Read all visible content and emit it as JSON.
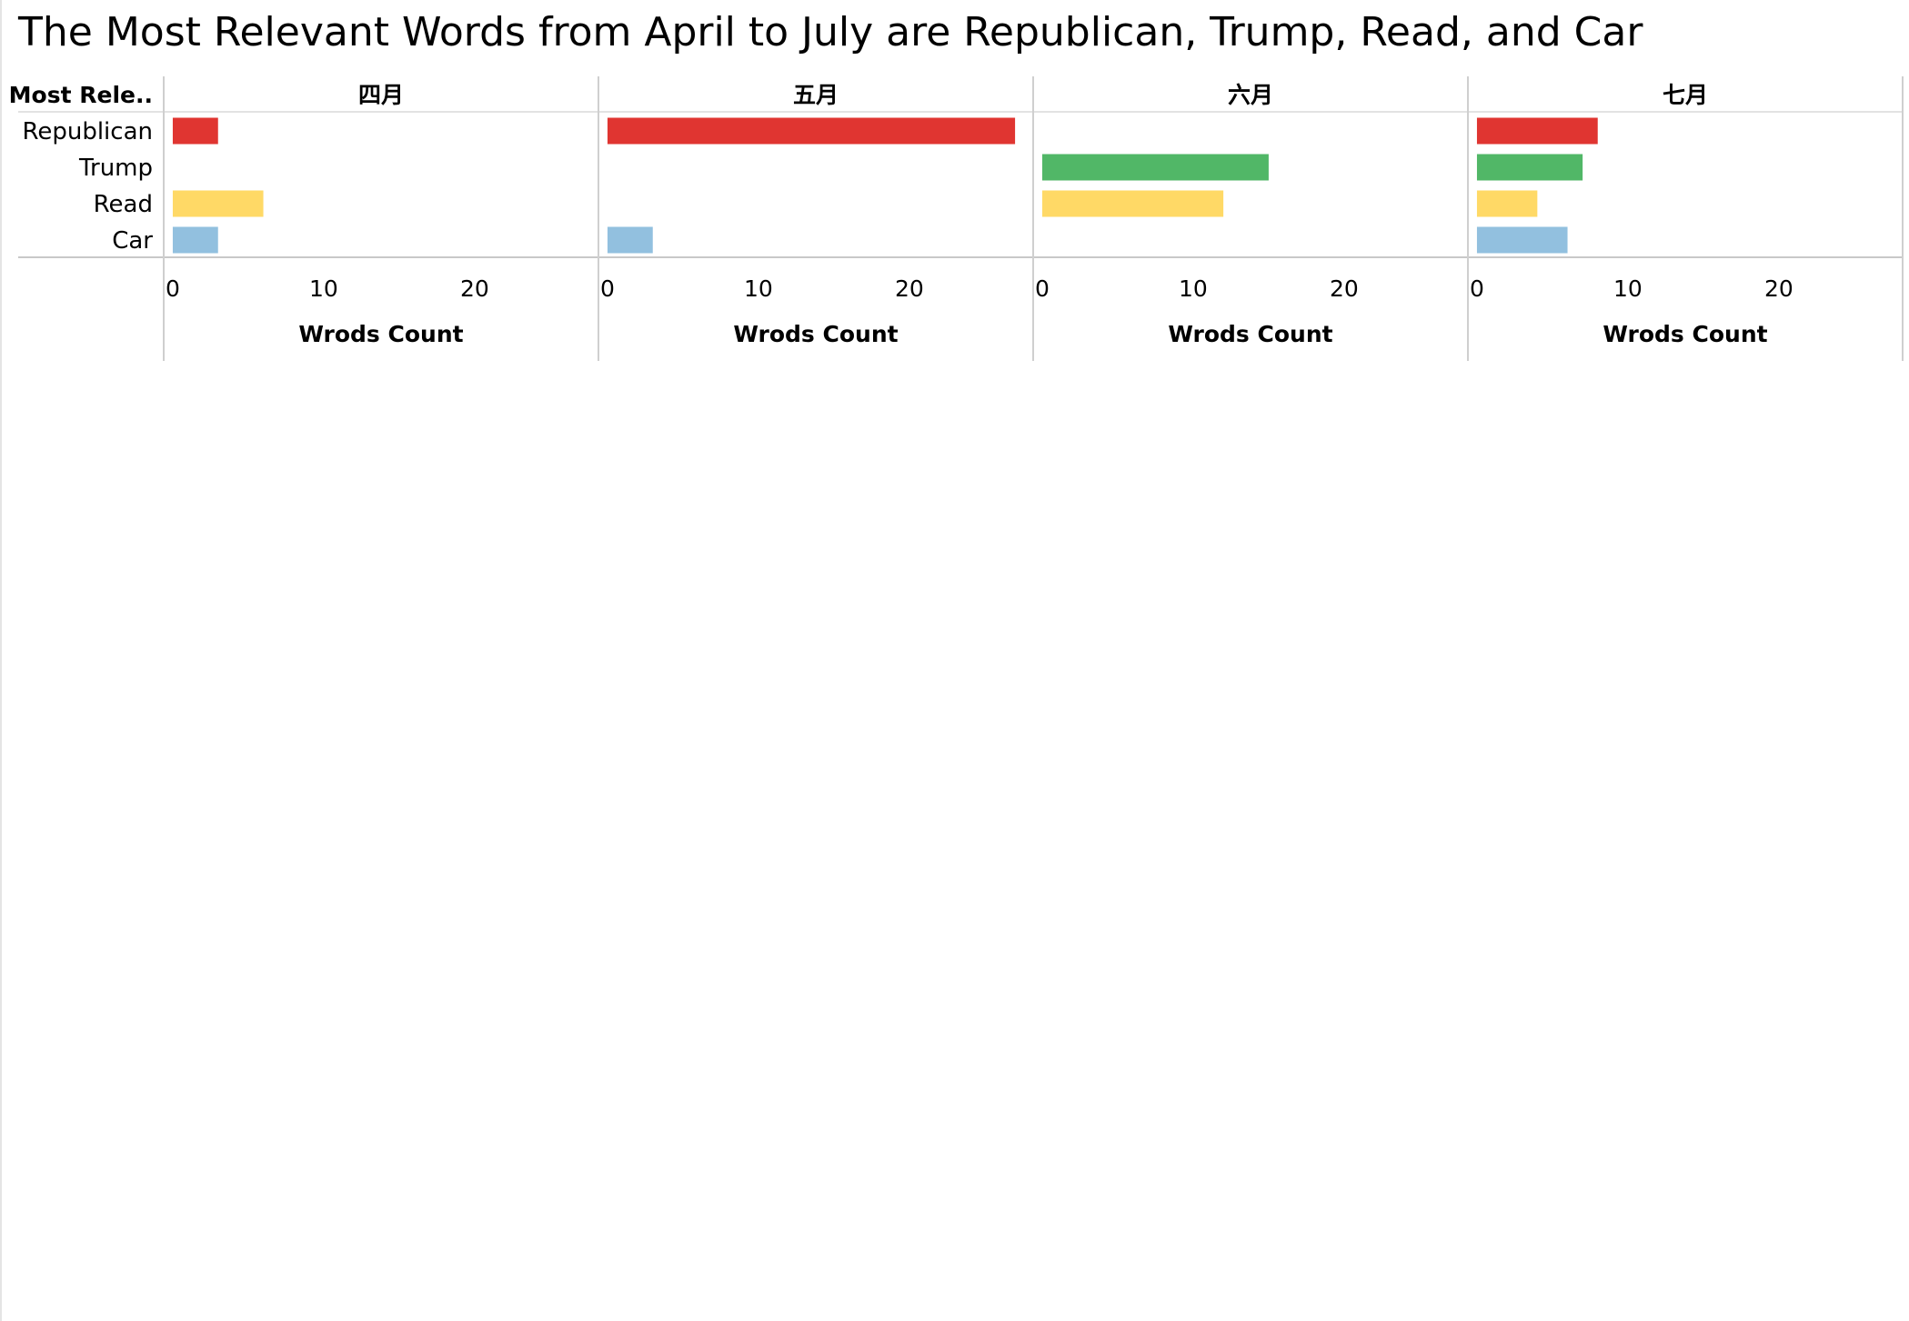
{
  "chart_data": {
    "type": "bar",
    "title": "The Most Relevant Words from April to July are Republican, Trump, Read, and Car",
    "row_header": "Most Rele..",
    "categories": [
      "Republican",
      "Trump",
      "Read",
      "Car"
    ],
    "panels": [
      {
        "name": "四月",
        "values": [
          3,
          0,
          6,
          3
        ]
      },
      {
        "name": "五月",
        "values": [
          27,
          0,
          0,
          3
        ]
      },
      {
        "name": "六月",
        "values": [
          0,
          15,
          12,
          0
        ]
      },
      {
        "name": "七月",
        "values": [
          8,
          7,
          4,
          6
        ]
      }
    ],
    "xlabel": "Wrods Count",
    "xticks": [
      0,
      10,
      20
    ],
    "xlim": [
      -0.6,
      28.2
    ],
    "colors": {
      "Republican": "#e03531",
      "Trump": "#51b767",
      "Read": "#ffd966",
      "Car": "#92c0df"
    },
    "grid": false
  }
}
